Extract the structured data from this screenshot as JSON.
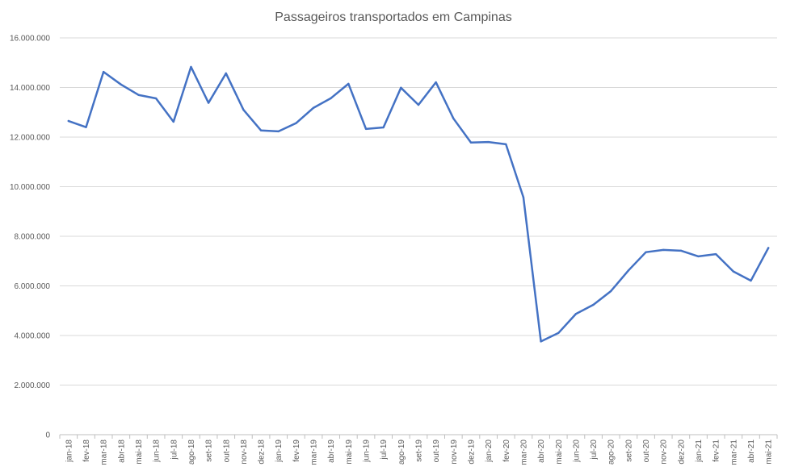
{
  "chart_data": {
    "type": "line",
    "title": "Passageiros transportados em Campinas",
    "xlabel": "",
    "ylabel": "",
    "ylim": [
      0,
      16000000
    ],
    "yticks": [
      0,
      2000000,
      4000000,
      6000000,
      8000000,
      10000000,
      12000000,
      14000000,
      16000000
    ],
    "ytick_labels": [
      "0",
      "2.000.000",
      "4.000.000",
      "6.000.000",
      "8.000.000",
      "10.000.000",
      "12.000.000",
      "14.000.000",
      "16.000.000"
    ],
    "grid": true,
    "legend": "none",
    "line_color": "#4472c4",
    "categories": [
      "jan-18",
      "fev-18",
      "mar-18",
      "abr-18",
      "mai-18",
      "jun-18",
      "jul-18",
      "ago-18",
      "set-18",
      "out-18",
      "nov-18",
      "dez-18",
      "jan-19",
      "fev-19",
      "mar-19",
      "abr-19",
      "mai-19",
      "jun-19",
      "jul-19",
      "ago-19",
      "set-19",
      "out-19",
      "nov-19",
      "dez-19",
      "jan-20",
      "fev-20",
      "mar-20",
      "abr-20",
      "mai-20",
      "jun-20",
      "jul-20",
      "ago-20",
      "set-20",
      "out-20",
      "nov-20",
      "dez-20",
      "jan-21",
      "fev-21",
      "mar-21",
      "abr-21",
      "mai-21"
    ],
    "series": [
      {
        "values": [
          12650000,
          12400000,
          14630000,
          14120000,
          13700000,
          13560000,
          12620000,
          14830000,
          13380000,
          14570000,
          13100000,
          12270000,
          12230000,
          12560000,
          13180000,
          13570000,
          14150000,
          12330000,
          12390000,
          13990000,
          13300000,
          14210000,
          12750000,
          11780000,
          11800000,
          11710000,
          9570000,
          3760000,
          4100000,
          4870000,
          5240000,
          5790000,
          6620000,
          7360000,
          7450000,
          7420000,
          7190000,
          7280000,
          6580000,
          6210000,
          7530000
        ]
      }
    ]
  }
}
